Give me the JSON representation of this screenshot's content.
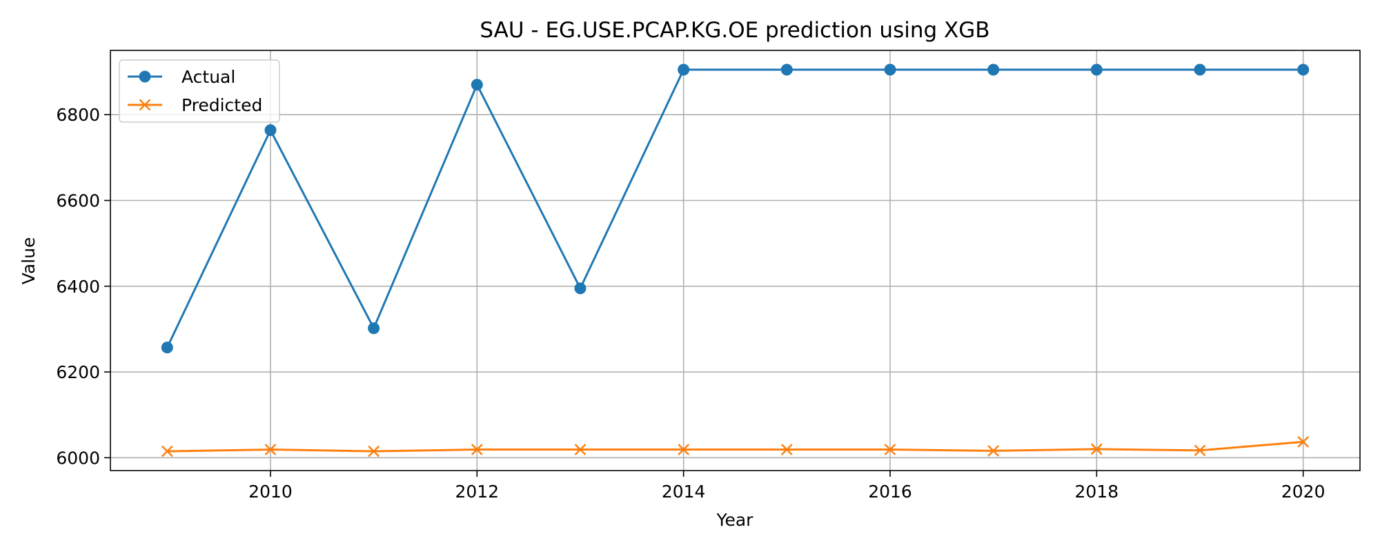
{
  "chart_data": {
    "type": "line",
    "title": "SAU - EG.USE.PCAP.KG.OE prediction using XGB",
    "xlabel": "Year",
    "ylabel": "Value",
    "x": [
      2009,
      2010,
      2011,
      2012,
      2013,
      2014,
      2015,
      2016,
      2017,
      2018,
      2019,
      2020
    ],
    "xticks": [
      "2010",
      "2012",
      "2014",
      "2016",
      "2018",
      "2020"
    ],
    "yticks": [
      "6000",
      "6200",
      "6400",
      "6600",
      "6800"
    ],
    "xlim": [
      2008.45,
      2020.55
    ],
    "ylim": [
      5970,
      6950
    ],
    "grid": true,
    "legend_position": "top-left",
    "series": [
      {
        "name": "Actual",
        "color": "#1f77b4",
        "marker": "circle",
        "values": [
          6257,
          6764,
          6302,
          6870,
          6395,
          6905,
          6905,
          6905,
          6905,
          6905,
          6905,
          6905
        ]
      },
      {
        "name": "Predicted",
        "color": "#ff7f0e",
        "marker": "x",
        "values": [
          6015,
          6019,
          6015,
          6019,
          6019,
          6019,
          6019,
          6019,
          6016,
          6020,
          6017,
          6037
        ]
      }
    ]
  }
}
